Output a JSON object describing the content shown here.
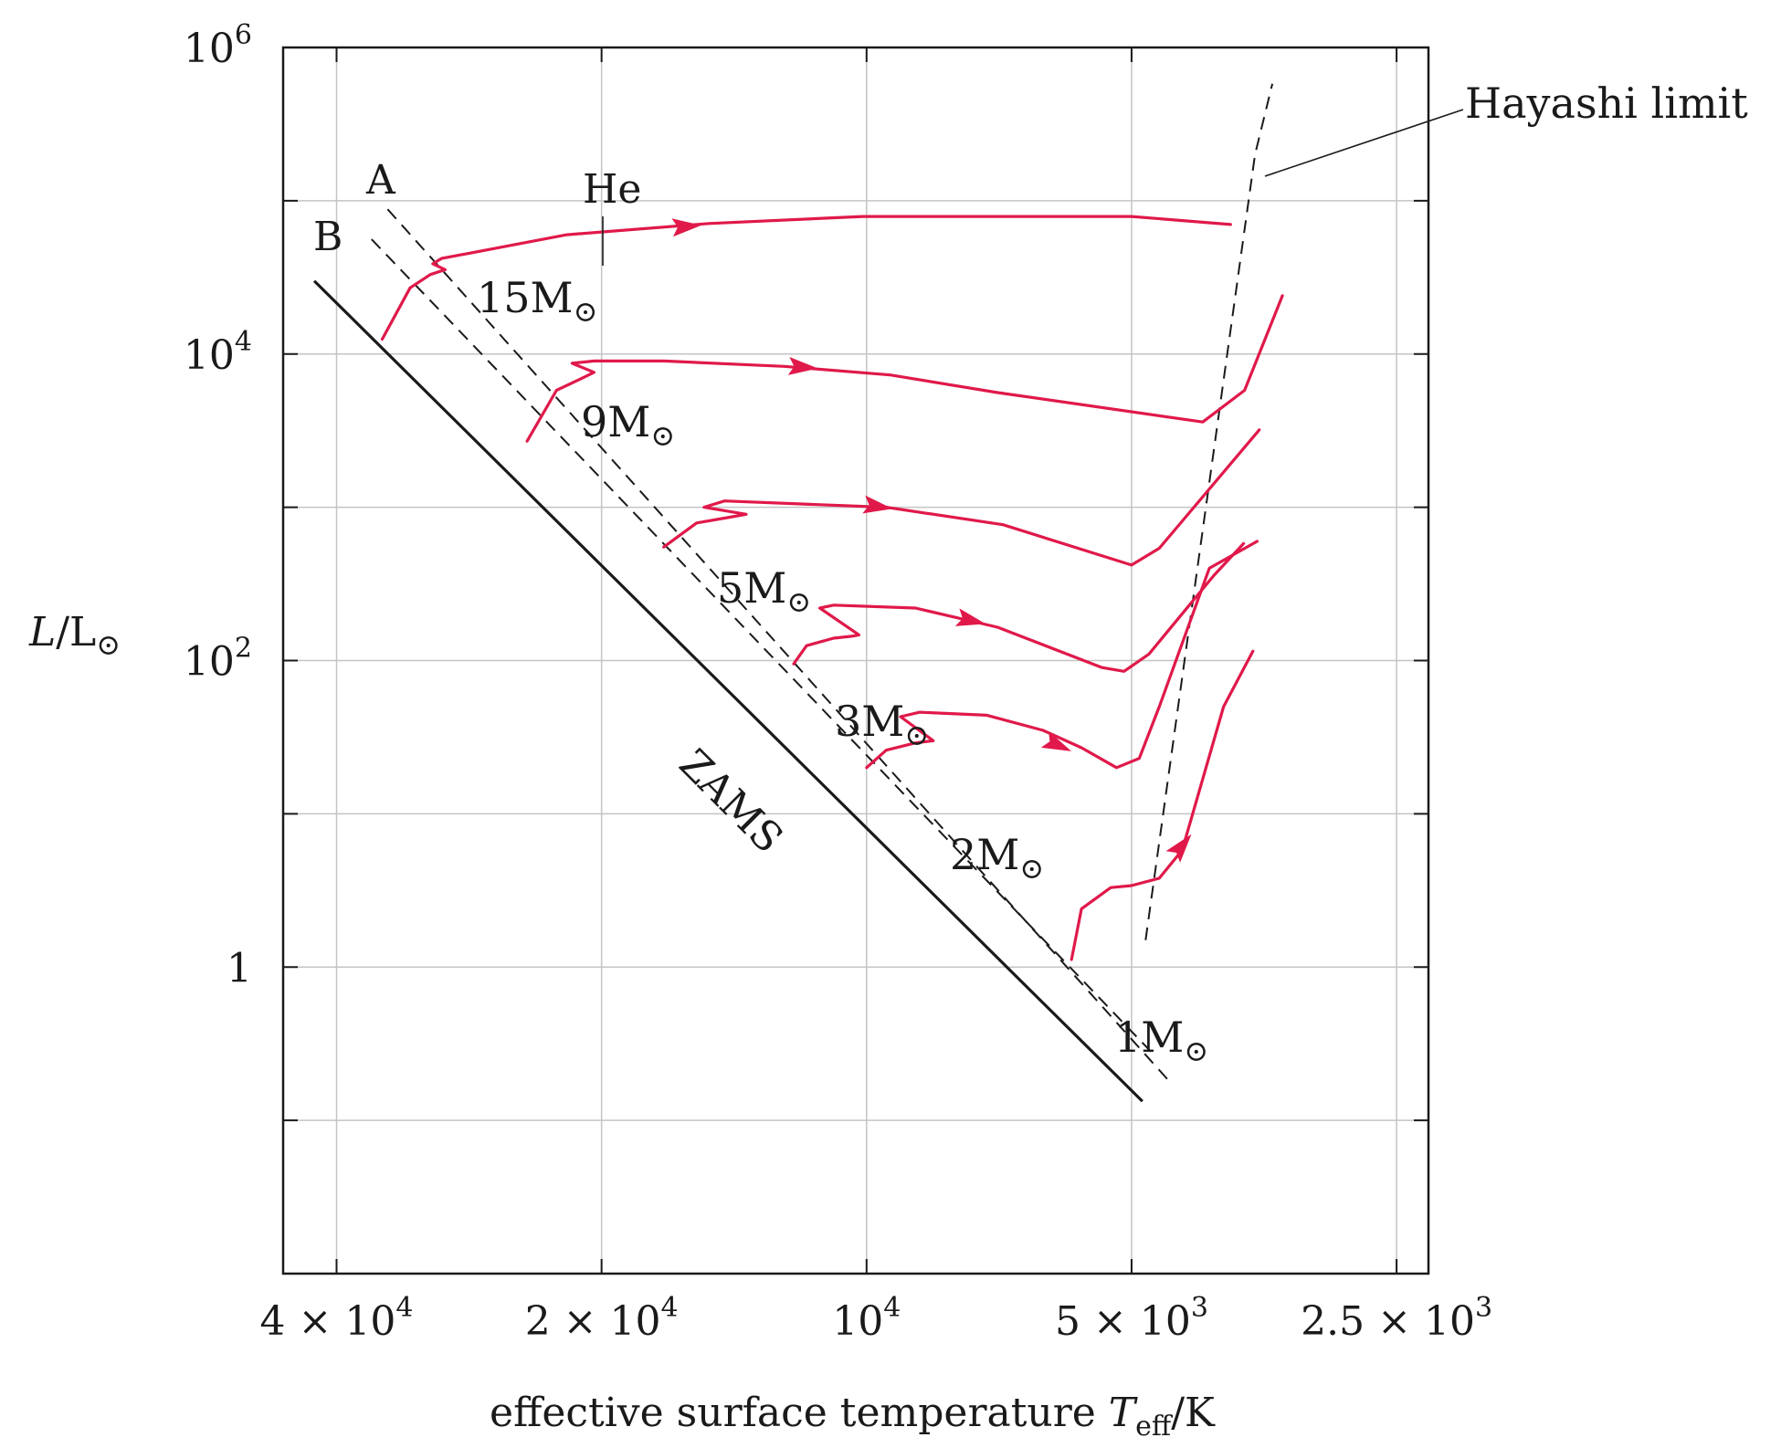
{
  "chart_data": {
    "type": "line",
    "title": "",
    "xlabel": {
      "text": "effective surface temperature ",
      "var": "T",
      "sub": "eff",
      "unit": "/K"
    },
    "ylabel": {
      "var": "L",
      "text": "/L",
      "sun": "⊙"
    },
    "x_scale": "log, reversed",
    "xlim": [
      46000,
      2300
    ],
    "y_scale": "log",
    "ylim": [
      0.01,
      1000000
    ],
    "x_ticks": [
      {
        "value": 40000,
        "mant": "4 × 10",
        "exp": "4"
      },
      {
        "value": 20000,
        "mant": "2 × 10",
        "exp": "4"
      },
      {
        "value": 10000,
        "mant": "10",
        "exp": "4"
      },
      {
        "value": 5000,
        "mant": "5 × 10",
        "exp": "3"
      },
      {
        "value": 2500,
        "mant": "2.5 × 10",
        "exp": "3"
      }
    ],
    "y_ticks": [
      {
        "value": 1000000,
        "mant": "10",
        "exp": "6"
      },
      {
        "value": 10000,
        "mant": "10",
        "exp": "4"
      },
      {
        "value": 100,
        "mant": "10",
        "exp": "2"
      },
      {
        "value": 1,
        "mant": "1",
        "exp": ""
      }
    ],
    "grid": true,
    "zams": {
      "label": "ZAMS",
      "points": [
        [
          42400,
          30000
        ],
        [
          4860,
          0.133
        ]
      ]
    },
    "line_A": {
      "label": "A",
      "points": [
        [
          35000,
          88000
        ],
        [
          4550,
          0.185
        ]
      ]
    },
    "line_B": {
      "label": "B",
      "points": [
        [
          36500,
          56000
        ],
        [
          4750,
          0.28
        ]
      ]
    },
    "hayashi_limit": {
      "label": "Hayashi limit",
      "points": [
        [
          4820,
          1.5
        ],
        [
          3620,
          200000
        ],
        [
          3460,
          580000
        ]
      ]
    },
    "he_marker": {
      "label": "He",
      "temperature": 20800,
      "luminosity": 60000
    },
    "series": [
      {
        "name": "15M",
        "mass_label": "15M",
        "sun": "⊙",
        "points": [
          [
            35500,
            12500
          ],
          [
            33000,
            27000
          ],
          [
            31300,
            33000
          ],
          [
            30100,
            35500
          ],
          [
            31100,
            38800
          ],
          [
            30400,
            42000
          ],
          [
            21900,
            60000
          ],
          [
            15100,
            71000
          ],
          [
            10100,
            79000
          ],
          [
            5000,
            79000
          ],
          [
            3860,
            70000
          ]
        ],
        "arrow_at": [
          16000,
          68000
        ]
      },
      {
        "name": "9M",
        "mass_label": "9M",
        "sun": "⊙",
        "points": [
          [
            24300,
            2700
          ],
          [
            22500,
            5800
          ],
          [
            21000,
            7000
          ],
          [
            20400,
            7600
          ],
          [
            21600,
            8700
          ],
          [
            20400,
            9000
          ],
          [
            17000,
            9000
          ],
          [
            12400,
            8300
          ],
          [
            9400,
            7300
          ],
          [
            7100,
            5600
          ],
          [
            4150,
            3600
          ],
          [
            3720,
            5800
          ],
          [
            3370,
            24000
          ]
        ],
        "arrow_at": [
          11800,
          8200
        ]
      },
      {
        "name": "5M",
        "mass_label": "5M",
        "sun": "⊙",
        "points": [
          [
            17000,
            550
          ],
          [
            15600,
            790
          ],
          [
            14500,
            850
          ],
          [
            13700,
            900
          ],
          [
            15300,
            1000
          ],
          [
            14500,
            1100
          ],
          [
            9500,
            1000
          ],
          [
            7000,
            770
          ],
          [
            5000,
            420
          ],
          [
            4650,
            540
          ],
          [
            3580,
            3200
          ]
        ],
        "arrow_at": [
          9700,
          1010
        ]
      },
      {
        "name": "3M",
        "mass_label": "3M",
        "sun": "⊙",
        "points": [
          [
            12100,
            95
          ],
          [
            11700,
            125
          ],
          [
            10900,
            140
          ],
          [
            10400,
            144
          ],
          [
            10200,
            147
          ],
          [
            11300,
            220
          ],
          [
            10900,
            230
          ],
          [
            8800,
            220
          ],
          [
            7100,
            165
          ],
          [
            5400,
            90
          ],
          [
            5100,
            85
          ],
          [
            4780,
            110
          ],
          [
            4030,
            360
          ],
          [
            3730,
            580
          ]
        ],
        "arrow_at": [
          7600,
          182
        ]
      },
      {
        "name": "2M",
        "mass_label": "2M",
        "sun": "⊙",
        "points": [
          [
            10000,
            20
          ],
          [
            9500,
            26
          ],
          [
            8800,
            29
          ],
          [
            8400,
            30
          ],
          [
            9150,
            43
          ],
          [
            8700,
            46
          ],
          [
            7300,
            44
          ],
          [
            6300,
            35
          ],
          [
            5700,
            27
          ],
          [
            5200,
            20
          ],
          [
            4900,
            23
          ],
          [
            4650,
            50
          ],
          [
            4080,
            400
          ],
          [
            3600,
            600
          ]
        ],
        "arrow_at": [
          6060,
          28
        ]
      },
      {
        "name": "1M",
        "mass_label": "1M",
        "sun": "⊙",
        "points": [
          [
            5850,
            1.12
          ],
          [
            5700,
            2.4
          ],
          [
            5280,
            3.3
          ],
          [
            5000,
            3.4
          ],
          [
            4650,
            3.8
          ],
          [
            4380,
            5.8
          ],
          [
            3930,
            50
          ],
          [
            3640,
            115
          ]
        ],
        "arrow_at": [
          4380,
          6.2
        ]
      }
    ]
  }
}
